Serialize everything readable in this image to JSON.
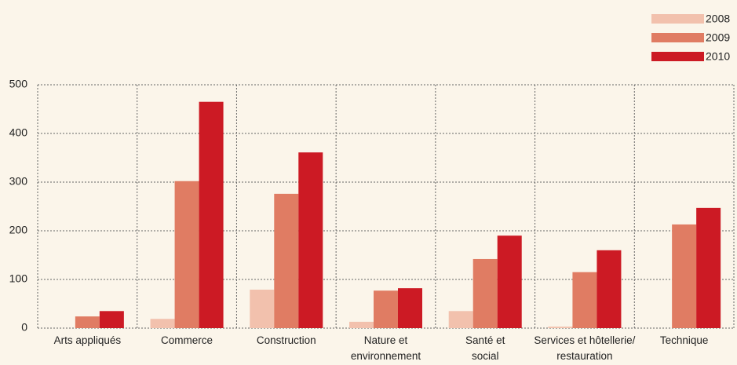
{
  "chart_data": {
    "type": "bar",
    "categories": [
      "Arts appliqués",
      "Commerce",
      "Construction",
      "Nature et\nenvironnement",
      "Santé et\nsocial",
      "Services et hôtellerie/\nrestauration",
      "Technique"
    ],
    "series": [
      {
        "name": "2008",
        "color": "#f2c1ad",
        "values": [
          0,
          19,
          79,
          13,
          35,
          3,
          0
        ]
      },
      {
        "name": "2009",
        "color": "#e07c63",
        "values": [
          24,
          302,
          276,
          77,
          142,
          115,
          213
        ]
      },
      {
        "name": "2010",
        "color": "#cc1a24",
        "values": [
          35,
          465,
          361,
          82,
          190,
          160,
          247
        ]
      }
    ],
    "ylim": [
      0,
      500
    ],
    "yticks": [
      0,
      100,
      200,
      300,
      400,
      500
    ],
    "grid": true,
    "legend": "top-right"
  }
}
